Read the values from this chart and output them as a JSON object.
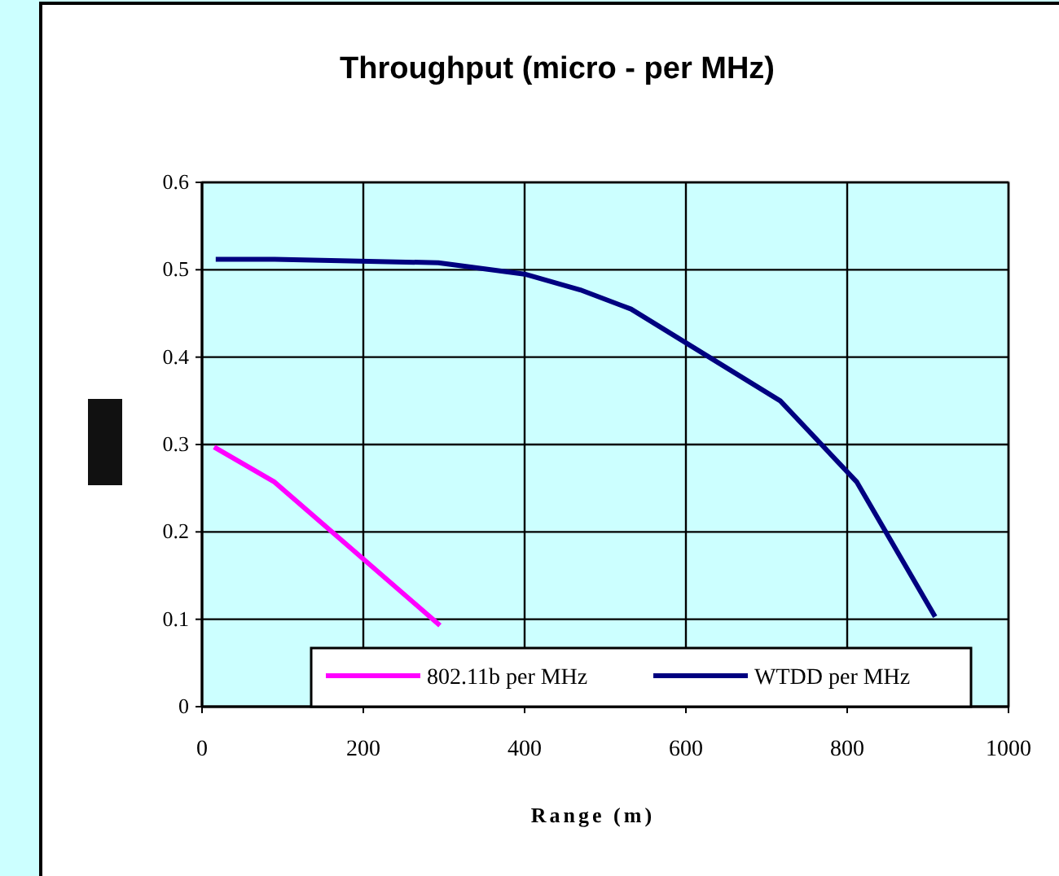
{
  "chart_data": {
    "type": "line",
    "title": "Throughput (micro - per MHz)",
    "xlabel": "Range (m)",
    "xlim": [
      0,
      1000
    ],
    "xticks": [
      0,
      200,
      400,
      600,
      800,
      1000
    ],
    "ylim": [
      0,
      0.6
    ],
    "yticks": [
      0,
      0.1,
      0.2,
      0.3,
      0.4,
      0.5,
      0.6
    ],
    "grid": true,
    "legend": "bottom",
    "marker": "none",
    "line_style": "solid",
    "series": [
      {
        "name": "802.11b per MHz",
        "color": "#ff00ff",
        "x": [
          15,
          90,
          295
        ],
        "values": [
          0.297,
          0.257,
          0.093
        ]
      },
      {
        "name": "WTDD per MHz",
        "color": "#000080",
        "x": [
          17,
          90,
          293,
          400,
          469,
          532,
          717,
          812,
          909
        ],
        "values": [
          0.512,
          0.512,
          0.508,
          0.495,
          0.477,
          0.455,
          0.35,
          0.257,
          0.103
        ]
      }
    ]
  }
}
